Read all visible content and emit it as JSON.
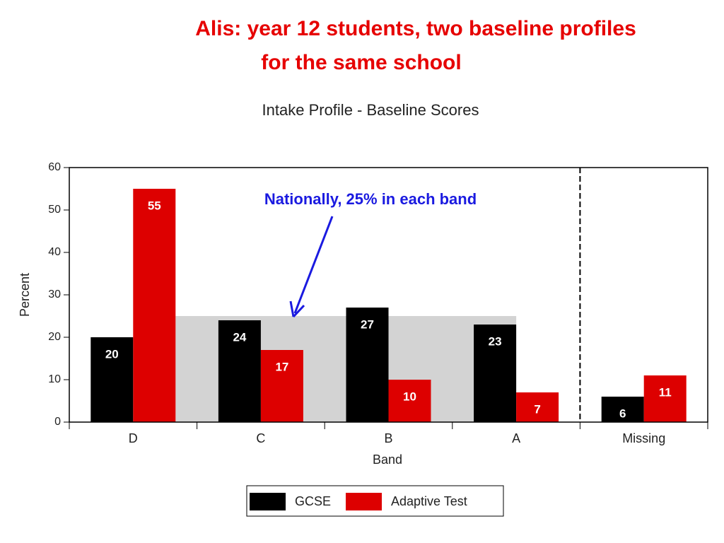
{
  "slide_title": [
    "Alis: year 12 students, two baseline profiles",
    "for the same school"
  ],
  "chart_data": {
    "type": "bar",
    "title": "Intake Profile - Baseline Scores",
    "x_label": "Band",
    "y_label": "Percent",
    "annotation": "Nationally, 25% in each band",
    "reference_value": 25,
    "categories": [
      "D",
      "C",
      "B",
      "A",
      "Missing"
    ],
    "series": [
      {
        "name": "GCSE",
        "color": "#000000",
        "values": [
          20,
          24,
          27,
          23,
          6
        ]
      },
      {
        "name": "Adaptive Test",
        "color": "#dd0000",
        "values": [
          55,
          17,
          10,
          7,
          11
        ]
      }
    ],
    "ylim": [
      0,
      60
    ],
    "yticks": [
      0,
      10,
      20,
      30,
      40,
      50,
      60
    ]
  }
}
